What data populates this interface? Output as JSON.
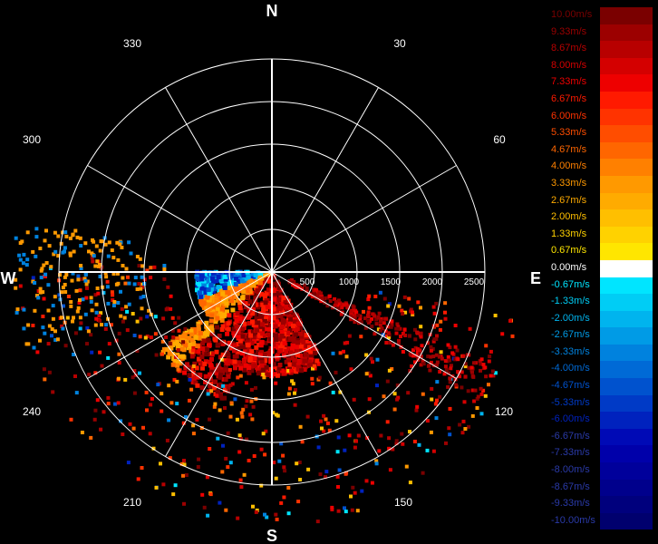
{
  "compass": {
    "north": "N",
    "south": "S",
    "east": "E",
    "west": "W"
  },
  "bearings": [
    "30",
    "60",
    "120",
    "150",
    "210",
    "240",
    "300",
    "330"
  ],
  "range_labels": [
    "500",
    "1000",
    "1500",
    "2000",
    "2500"
  ],
  "legend": [
    {
      "label": "10.00m/s",
      "color": "#7a0000"
    },
    {
      "label": "9.33m/s",
      "color": "#9c0000"
    },
    {
      "label": "8.67m/s",
      "color": "#b80000"
    },
    {
      "label": "8.00m/s",
      "color": "#d40000"
    },
    {
      "label": "7.33m/s",
      "color": "#ee0000"
    },
    {
      "label": "6.67m/s",
      "color": "#ff1a00"
    },
    {
      "label": "6.00m/s",
      "color": "#ff3300"
    },
    {
      "label": "5.33m/s",
      "color": "#ff4d00"
    },
    {
      "label": "4.67m/s",
      "color": "#ff6600"
    },
    {
      "label": "4.00m/s",
      "color": "#ff8000"
    },
    {
      "label": "3.33m/s",
      "color": "#ff9900"
    },
    {
      "label": "2.67m/s",
      "color": "#ffab00"
    },
    {
      "label": "2.00m/s",
      "color": "#ffbf00"
    },
    {
      "label": "1.33m/s",
      "color": "#ffd200"
    },
    {
      "label": "0.67m/s",
      "color": "#ffe600"
    },
    {
      "label": "0.00m/s",
      "color": "#ffffff"
    },
    {
      "label": "-0.67m/s",
      "color": "#00e5ff"
    },
    {
      "label": "-1.33m/s",
      "color": "#00cdf5"
    },
    {
      "label": "-2.00m/s",
      "color": "#00b4ee"
    },
    {
      "label": "-2.67m/s",
      "color": "#009be6"
    },
    {
      "label": "-3.33m/s",
      "color": "#0082de"
    },
    {
      "label": "-4.00m/s",
      "color": "#006ad6"
    },
    {
      "label": "-4.67m/s",
      "color": "#0052ce"
    },
    {
      "label": "-5.33m/s",
      "color": "#003ac6"
    },
    {
      "label": "-6.00m/s",
      "color": "#0022be"
    },
    {
      "label": "-6.67m/s",
      "color": "#000ab6"
    },
    {
      "label": "-7.33m/s",
      "color": "#0000aa"
    },
    {
      "label": "-8.00m/s",
      "color": "#00009b"
    },
    {
      "label": "-8.67m/s",
      "color": "#00008c"
    },
    {
      "label": "-9.33m/s",
      "color": "#00007d"
    },
    {
      "label": "-10.00m/s",
      "color": "#00006e"
    }
  ],
  "max_range_m": 2500
}
